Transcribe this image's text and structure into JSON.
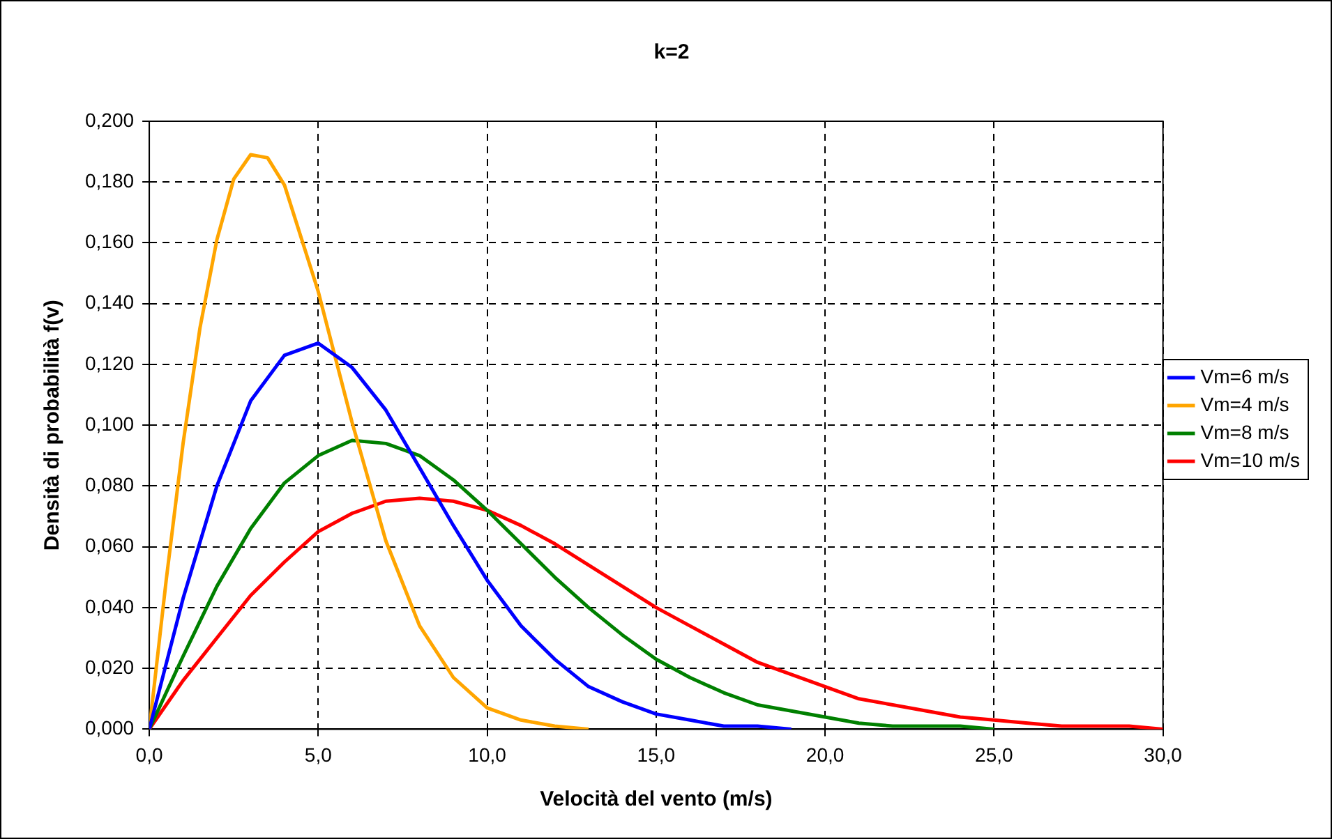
{
  "chart_data": {
    "type": "line",
    "title": "k=2",
    "xlabel": "Velocità del vento (m/s)",
    "ylabel": "Densità di probabilità f(v)",
    "xlim": [
      0,
      30
    ],
    "ylim": [
      0,
      0.2
    ],
    "xticks": [
      {
        "value": 0,
        "label": "0,0"
      },
      {
        "value": 5,
        "label": "5,0"
      },
      {
        "value": 10,
        "label": "10,0"
      },
      {
        "value": 15,
        "label": "15,0"
      },
      {
        "value": 20,
        "label": "20,0"
      },
      {
        "value": 25,
        "label": "25,0"
      },
      {
        "value": 30,
        "label": "30,0"
      }
    ],
    "yticks": [
      {
        "value": 0,
        "label": "0,000"
      },
      {
        "value": 0.02,
        "label": "0,020"
      },
      {
        "value": 0.04,
        "label": "0,040"
      },
      {
        "value": 0.06,
        "label": "0,060"
      },
      {
        "value": 0.08,
        "label": "0,080"
      },
      {
        "value": 0.1,
        "label": "0,100"
      },
      {
        "value": 0.12,
        "label": "0,120"
      },
      {
        "value": 0.14,
        "label": "0,140"
      },
      {
        "value": 0.16,
        "label": "0,160"
      },
      {
        "value": 0.18,
        "label": "0,180"
      },
      {
        "value": 0.2,
        "label": "0,200"
      }
    ],
    "grid": true,
    "legend": "right",
    "marker": "none",
    "line_style": "solid",
    "series": [
      {
        "name": "Vm=6 m/s",
        "color": "#0000ff",
        "x": [
          0,
          1,
          2,
          3,
          4,
          5,
          6,
          7,
          8,
          9,
          10,
          11,
          12,
          13,
          14,
          15,
          16,
          17,
          18,
          19
        ],
        "values": [
          0,
          0.043,
          0.08,
          0.108,
          0.123,
          0.127,
          0.119,
          0.105,
          0.086,
          0.067,
          0.049,
          0.034,
          0.023,
          0.014,
          0.009,
          0.005,
          0.003,
          0.001,
          0.001,
          0.0
        ]
      },
      {
        "name": "Vm=4 m/s",
        "color": "#ffa500",
        "x": [
          0,
          0.5,
          1,
          1.5,
          2,
          2.5,
          3,
          3.5,
          4,
          5,
          6,
          7,
          8,
          9,
          10,
          11,
          12,
          13
        ],
        "values": [
          0,
          0.049,
          0.094,
          0.132,
          0.161,
          0.181,
          0.189,
          0.188,
          0.179,
          0.144,
          0.101,
          0.062,
          0.034,
          0.017,
          0.007,
          0.003,
          0.001,
          0.0
        ]
      },
      {
        "name": "Vm=8 m/s",
        "color": "#008000",
        "x": [
          0,
          1,
          2,
          3,
          4,
          5,
          6,
          7,
          8,
          9,
          10,
          11,
          12,
          13,
          14,
          15,
          16,
          17,
          18,
          19,
          20,
          21,
          22,
          23,
          24,
          25
        ],
        "values": [
          0,
          0.024,
          0.047,
          0.066,
          0.081,
          0.09,
          0.095,
          0.094,
          0.09,
          0.082,
          0.072,
          0.061,
          0.05,
          0.04,
          0.031,
          0.023,
          0.017,
          0.012,
          0.008,
          0.006,
          0.004,
          0.002,
          0.001,
          0.001,
          0.001,
          0.0
        ]
      },
      {
        "name": "Vm=10 m/s",
        "color": "#ff0000",
        "x": [
          0,
          1,
          2,
          3,
          4,
          5,
          6,
          7,
          8,
          9,
          10,
          11,
          12,
          13,
          14,
          15,
          16,
          17,
          18,
          19,
          20,
          21,
          22,
          23,
          24,
          25,
          26,
          27,
          28,
          29,
          30
        ],
        "values": [
          0,
          0.016,
          0.03,
          0.044,
          0.055,
          0.065,
          0.071,
          0.075,
          0.076,
          0.075,
          0.072,
          0.067,
          0.061,
          0.054,
          0.047,
          0.04,
          0.034,
          0.028,
          0.022,
          0.018,
          0.014,
          0.01,
          0.008,
          0.006,
          0.004,
          0.003,
          0.002,
          0.001,
          0.001,
          0.001,
          0.0
        ]
      }
    ]
  }
}
